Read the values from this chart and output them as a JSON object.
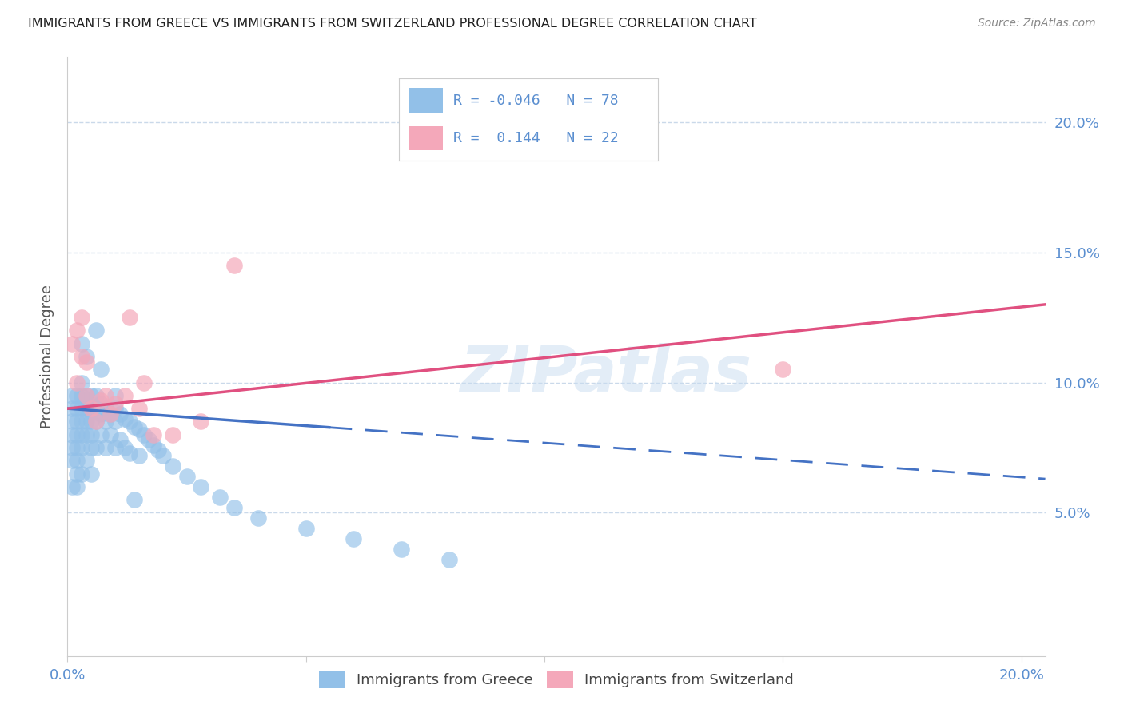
{
  "title": "IMMIGRANTS FROM GREECE VS IMMIGRANTS FROM SWITZERLAND PROFESSIONAL DEGREE CORRELATION CHART",
  "source": "Source: ZipAtlas.com",
  "ylabel_left": "Professional Degree",
  "watermark": "ZIPatlas",
  "legend_blue_R": "-0.046",
  "legend_blue_N": "78",
  "legend_pink_R": "0.144",
  "legend_pink_N": "22",
  "label_blue": "Immigrants from Greece",
  "label_pink": "Immigrants from Switzerland",
  "xlim": [
    0.0,
    0.205
  ],
  "ylim": [
    -0.005,
    0.225
  ],
  "right_yticks": [
    0.05,
    0.1,
    0.15,
    0.2
  ],
  "right_yticklabels": [
    "5.0%",
    "10.0%",
    "15.0%",
    "20.0%"
  ],
  "color_blue": "#92C0E8",
  "color_pink": "#F4A8BA",
  "trendline_blue": "#4472C4",
  "trendline_pink": "#E05080",
  "background_color": "#FFFFFF",
  "title_color": "#222222",
  "axis_color": "#5B8FD0",
  "grid_color": "#C5D5E8",
  "greece_trend_y0": 0.09,
  "greece_trend_y1": 0.063,
  "greece_trend_solid_xmax": 0.055,
  "switzerland_trend_y0": 0.09,
  "switzerland_trend_y1": 0.13,
  "greece_x": [
    0.001,
    0.001,
    0.001,
    0.001,
    0.001,
    0.001,
    0.001,
    0.002,
    0.002,
    0.002,
    0.002,
    0.002,
    0.002,
    0.002,
    0.002,
    0.003,
    0.003,
    0.003,
    0.003,
    0.003,
    0.003,
    0.003,
    0.004,
    0.004,
    0.004,
    0.004,
    0.004,
    0.005,
    0.005,
    0.005,
    0.005,
    0.005,
    0.005,
    0.006,
    0.006,
    0.006,
    0.006,
    0.007,
    0.007,
    0.007,
    0.008,
    0.008,
    0.008,
    0.009,
    0.009,
    0.01,
    0.01,
    0.01,
    0.011,
    0.011,
    0.012,
    0.012,
    0.013,
    0.013,
    0.014,
    0.015,
    0.015,
    0.016,
    0.017,
    0.018,
    0.019,
    0.02,
    0.022,
    0.025,
    0.028,
    0.032,
    0.035,
    0.04,
    0.05,
    0.06,
    0.07,
    0.08,
    0.003,
    0.004,
    0.006,
    0.007,
    0.01,
    0.014
  ],
  "greece_y": [
    0.095,
    0.09,
    0.085,
    0.08,
    0.075,
    0.07,
    0.06,
    0.095,
    0.09,
    0.085,
    0.08,
    0.075,
    0.07,
    0.065,
    0.06,
    0.1,
    0.095,
    0.09,
    0.085,
    0.08,
    0.075,
    0.065,
    0.095,
    0.09,
    0.085,
    0.08,
    0.07,
    0.095,
    0.09,
    0.085,
    0.08,
    0.075,
    0.065,
    0.095,
    0.09,
    0.085,
    0.075,
    0.092,
    0.088,
    0.08,
    0.09,
    0.085,
    0.075,
    0.088,
    0.08,
    0.09,
    0.085,
    0.075,
    0.088,
    0.078,
    0.086,
    0.075,
    0.085,
    0.073,
    0.083,
    0.082,
    0.072,
    0.08,
    0.078,
    0.076,
    0.074,
    0.072,
    0.068,
    0.064,
    0.06,
    0.056,
    0.052,
    0.048,
    0.044,
    0.04,
    0.036,
    0.032,
    0.115,
    0.11,
    0.12,
    0.105,
    0.095,
    0.055
  ],
  "switzerland_x": [
    0.001,
    0.002,
    0.002,
    0.003,
    0.003,
    0.004,
    0.004,
    0.005,
    0.006,
    0.007,
    0.008,
    0.009,
    0.01,
    0.012,
    0.013,
    0.015,
    0.016,
    0.018,
    0.022,
    0.028,
    0.035,
    0.15
  ],
  "switzerland_y": [
    0.115,
    0.12,
    0.1,
    0.125,
    0.11,
    0.095,
    0.108,
    0.09,
    0.085,
    0.093,
    0.095,
    0.088,
    0.092,
    0.095,
    0.125,
    0.09,
    0.1,
    0.08,
    0.08,
    0.085,
    0.145,
    0.105
  ]
}
